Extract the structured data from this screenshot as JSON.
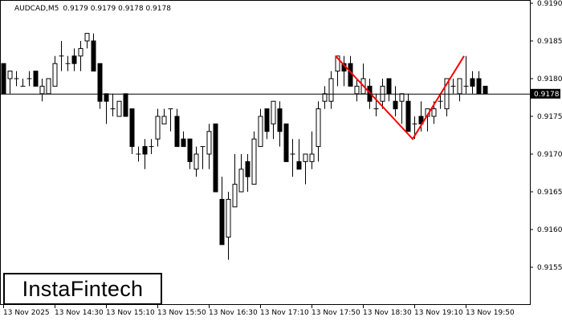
{
  "header": {
    "symbol": "AUDCAD,M5",
    "ohlc": "0.9179 0.9179 0.9178 0.9178"
  },
  "logo": {
    "text": "InstaFintech"
  },
  "colors": {
    "background": "#ffffff",
    "bull_body": "#ffffff",
    "bear_body": "#000000",
    "pattern_line": "#ff0000",
    "price_label_bg": "#000000"
  },
  "chart_data": {
    "type": "candlestick",
    "title": "AUDCAD,M5",
    "ylim": [
      0.915,
      0.919
    ],
    "y_ticks": [
      "0.9190",
      "0.9185",
      "0.9180",
      "0.9175",
      "0.9170",
      "0.9165",
      "0.9160",
      "0.9155"
    ],
    "x_ticks": [
      {
        "time": "13:50",
        "label": "13 Nov 2025"
      },
      {
        "time": "14:30",
        "label": "13 Nov 14:30"
      },
      {
        "time": "15:10",
        "label": "13 Nov 15:10"
      },
      {
        "time": "15:50",
        "label": "13 Nov 15:50"
      },
      {
        "time": "16:30",
        "label": "13 Nov 16:30"
      },
      {
        "time": "17:10",
        "label": "13 Nov 17:10"
      },
      {
        "time": "17:50",
        "label": "13 Nov 17:50"
      },
      {
        "time": "18:30",
        "label": "13 Nov 18:30"
      },
      {
        "time": "19:10",
        "label": "13 Nov 19:10"
      },
      {
        "time": "19:50",
        "label": "13 Nov 19:50"
      }
    ],
    "current_price": "0.9178",
    "grid": false,
    "candle_fields": [
      "time",
      "open",
      "high",
      "low",
      "close"
    ],
    "candles": [
      [
        "13:50",
        0.9182,
        0.9182,
        0.9178,
        0.9178
      ],
      [
        "13:55",
        0.918,
        0.9181,
        0.9178,
        0.9181
      ],
      [
        "14:00",
        0.918,
        0.9181,
        0.9179,
        0.918
      ],
      [
        "14:05",
        0.9179,
        0.918,
        0.9179,
        0.9179
      ],
      [
        "14:10",
        0.918,
        0.9181,
        0.9179,
        0.918
      ],
      [
        "14:15",
        0.9181,
        0.9181,
        0.9179,
        0.9179
      ],
      [
        "14:20",
        0.9178,
        0.918,
        0.9177,
        0.9179
      ],
      [
        "14:25",
        0.9178,
        0.918,
        0.9178,
        0.918
      ],
      [
        "14:30",
        0.9179,
        0.9183,
        0.9179,
        0.9182
      ],
      [
        "14:35",
        0.9183,
        0.9185,
        0.9181,
        0.9183
      ],
      [
        "14:40",
        0.9182,
        0.9183,
        0.9181,
        0.9182
      ],
      [
        "14:45",
        0.9183,
        0.9184,
        0.9181,
        0.9182
      ],
      [
        "14:50",
        0.9183,
        0.9185,
        0.9181,
        0.9184
      ],
      [
        "14:55",
        0.9185,
        0.9186,
        0.9184,
        0.9186
      ],
      [
        "15:00",
        0.9185,
        0.9186,
        0.9181,
        0.9181
      ],
      [
        "15:05",
        0.9182,
        0.9182,
        0.9176,
        0.9177
      ],
      [
        "15:10",
        0.9178,
        0.9178,
        0.9174,
        0.9177
      ],
      [
        "15:15",
        0.9176,
        0.9178,
        0.9175,
        0.9176
      ],
      [
        "15:20",
        0.9175,
        0.9177,
        0.9175,
        0.9177
      ],
      [
        "15:25",
        0.9178,
        0.9178,
        0.9175,
        0.9175
      ],
      [
        "15:30",
        0.9176,
        0.9176,
        0.917,
        0.9171
      ],
      [
        "15:35",
        0.917,
        0.9171,
        0.9169,
        0.917
      ],
      [
        "15:40",
        0.9171,
        0.9172,
        0.9168,
        0.917
      ],
      [
        "15:45",
        0.9171,
        0.9172,
        0.917,
        0.9171
      ],
      [
        "15:50",
        0.9172,
        0.9176,
        0.9171,
        0.9175
      ],
      [
        "15:55",
        0.9174,
        0.9176,
        0.9174,
        0.9175
      ],
      [
        "16:00",
        0.9176,
        0.9176,
        0.9173,
        0.9176
      ],
      [
        "16:05",
        0.9175,
        0.9176,
        0.9171,
        0.9171
      ],
      [
        "16:10",
        0.9172,
        0.9173,
        0.9171,
        0.9171
      ],
      [
        "16:15",
        0.9172,
        0.9172,
        0.9168,
        0.9169
      ],
      [
        "16:20",
        0.9168,
        0.9171,
        0.9167,
        0.917
      ],
      [
        "16:25",
        0.9171,
        0.9171,
        0.9168,
        0.9171
      ],
      [
        "16:30",
        0.917,
        0.9174,
        0.9168,
        0.9173
      ],
      [
        "16:35",
        0.9174,
        0.9174,
        0.9165,
        0.9165
      ],
      [
        "16:40",
        0.9164,
        0.9167,
        0.9158,
        0.9158
      ],
      [
        "16:45",
        0.9159,
        0.9165,
        0.9156,
        0.9164
      ],
      [
        "16:50",
        0.9163,
        0.917,
        0.9163,
        0.9166
      ],
      [
        "16:55",
        0.9165,
        0.917,
        0.9165,
        0.9168
      ],
      [
        "17:00",
        0.9169,
        0.917,
        0.9165,
        0.9167
      ],
      [
        "17:05",
        0.9166,
        0.9173,
        0.9166,
        0.9172
      ],
      [
        "17:10",
        0.9171,
        0.9176,
        0.9171,
        0.9175
      ],
      [
        "17:15",
        0.9176,
        0.9176,
        0.9172,
        0.9173
      ],
      [
        "17:20",
        0.9174,
        0.9177,
        0.9172,
        0.9177
      ],
      [
        "17:25",
        0.9176,
        0.9177,
        0.9171,
        0.9173
      ],
      [
        "17:30",
        0.9174,
        0.9174,
        0.9169,
        0.9169
      ],
      [
        "17:35",
        0.917,
        0.9172,
        0.9167,
        0.917
      ],
      [
        "17:40",
        0.9169,
        0.9172,
        0.9168,
        0.9168
      ],
      [
        "17:45",
        0.9169,
        0.917,
        0.9166,
        0.917
      ],
      [
        "17:50",
        0.9169,
        0.9173,
        0.9168,
        0.917
      ],
      [
        "17:55",
        0.9171,
        0.9177,
        0.9169,
        0.9176
      ],
      [
        "18:00",
        0.9177,
        0.9179,
        0.9176,
        0.9178
      ],
      [
        "18:05",
        0.9177,
        0.9181,
        0.9176,
        0.918
      ],
      [
        "18:10",
        0.9181,
        0.9183,
        0.9179,
        0.9183
      ],
      [
        "18:15",
        0.9182,
        0.9183,
        0.9179,
        0.9181
      ],
      [
        "18:20",
        0.9182,
        0.9183,
        0.9179,
        0.9179
      ],
      [
        "18:25",
        0.9178,
        0.918,
        0.9177,
        0.9179
      ],
      [
        "18:30",
        0.9178,
        0.9182,
        0.9178,
        0.918
      ],
      [
        "18:35",
        0.9179,
        0.918,
        0.9176,
        0.9177
      ],
      [
        "18:40",
        0.9176,
        0.9178,
        0.9175,
        0.9176
      ],
      [
        "18:45",
        0.9177,
        0.918,
        0.9176,
        0.9179
      ],
      [
        "18:50",
        0.918,
        0.918,
        0.9177,
        0.9178
      ],
      [
        "18:55",
        0.9177,
        0.9179,
        0.9175,
        0.9176
      ],
      [
        "19:00",
        0.9177,
        0.9178,
        0.9174,
        0.9178
      ],
      [
        "19:05",
        0.9177,
        0.9178,
        0.9173,
        0.9173
      ],
      [
        "19:10",
        0.9174,
        0.9175,
        0.9172,
        0.9174
      ],
      [
        "19:15",
        0.9175,
        0.9177,
        0.9173,
        0.9174
      ],
      [
        "19:20",
        0.9175,
        0.9176,
        0.9173,
        0.9176
      ],
      [
        "19:25",
        0.9175,
        0.9177,
        0.9174,
        0.9176
      ],
      [
        "19:30",
        0.9177,
        0.9178,
        0.9176,
        0.9177
      ],
      [
        "19:35",
        0.9176,
        0.918,
        0.9175,
        0.918
      ],
      [
        "19:40",
        0.9179,
        0.918,
        0.9178,
        0.9179
      ],
      [
        "19:45",
        0.9178,
        0.918,
        0.9177,
        0.918
      ],
      [
        "19:50",
        0.9179,
        0.9183,
        0.9178,
        0.9179
      ],
      [
        "19:55",
        0.918,
        0.9181,
        0.9178,
        0.9179
      ],
      [
        "20:00",
        0.918,
        0.9181,
        0.9178,
        0.9178
      ],
      [
        "20:05",
        0.9179,
        0.9179,
        0.9178,
        0.9178
      ]
    ],
    "pattern_line": [
      {
        "time": "18:10",
        "price": 0.9183
      },
      {
        "time": "19:10",
        "price": 0.9172
      },
      {
        "time": "19:50",
        "price": 0.9183
      }
    ]
  }
}
